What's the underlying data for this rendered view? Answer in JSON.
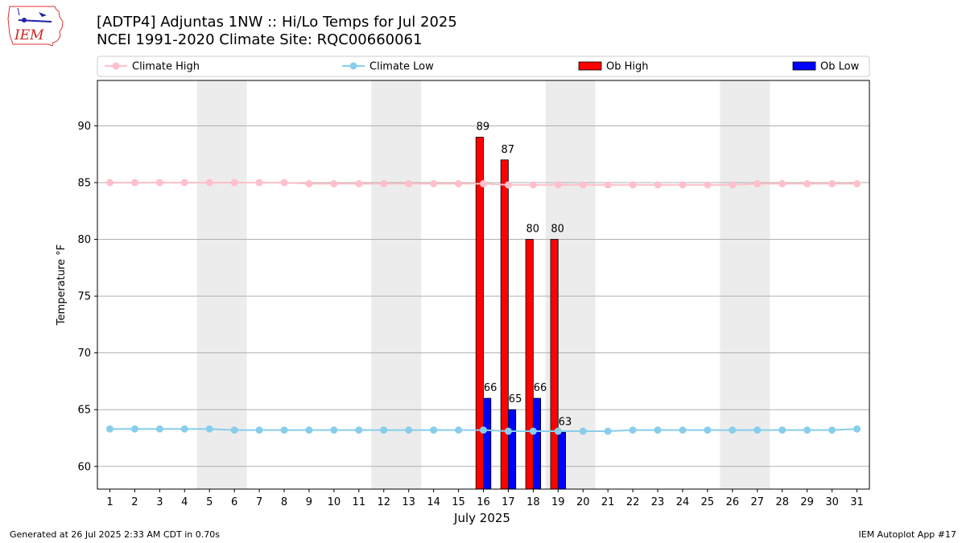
{
  "header": {
    "title_line1": "[ADTP4] Adjuntas 1NW :: Hi/Lo Temps for Jul 2025",
    "title_line2": "NCEI 1991-2020 Climate Site: RQC00660061",
    "logo_text": "IEM"
  },
  "footer": {
    "left": "Generated at 26 Jul 2025 2:33 AM CDT in 0.70s",
    "right": "IEM Autoplot App #17"
  },
  "colors": {
    "climate_high": "#ffc0cb",
    "climate_low": "#87ceeb",
    "ob_high": "#ff0000",
    "ob_low": "#0000ff",
    "weekend_shade": "#ececec",
    "grid": "#b0b0b0"
  },
  "chart_data": {
    "type": "bar",
    "xlabel": "July 2025",
    "ylabel": "Temperature °F",
    "xlim": [
      0.5,
      31.5
    ],
    "ylim": [
      58,
      94
    ],
    "yticks": [
      60,
      65,
      70,
      75,
      80,
      85,
      90
    ],
    "grid": "y",
    "legend_position": "top",
    "shaded_weekends": [
      [
        5,
        6
      ],
      [
        12,
        13
      ],
      [
        19,
        20
      ],
      [
        26,
        27
      ]
    ],
    "days": [
      1,
      2,
      3,
      4,
      5,
      6,
      7,
      8,
      9,
      10,
      11,
      12,
      13,
      14,
      15,
      16,
      17,
      18,
      19,
      20,
      21,
      22,
      23,
      24,
      25,
      26,
      27,
      28,
      29,
      30,
      31
    ],
    "series": [
      {
        "name": "Climate High",
        "kind": "line",
        "values": [
          85.0,
          85.0,
          85.0,
          85.0,
          85.0,
          85.0,
          85.0,
          85.0,
          84.9,
          84.9,
          84.9,
          84.9,
          84.9,
          84.9,
          84.9,
          84.9,
          84.8,
          84.8,
          84.8,
          84.8,
          84.8,
          84.8,
          84.8,
          84.8,
          84.8,
          84.8,
          84.9,
          84.9,
          84.9,
          84.9,
          84.9
        ]
      },
      {
        "name": "Climate Low",
        "kind": "line",
        "values": [
          63.3,
          63.3,
          63.3,
          63.3,
          63.3,
          63.2,
          63.2,
          63.2,
          63.2,
          63.2,
          63.2,
          63.2,
          63.2,
          63.2,
          63.2,
          63.2,
          63.1,
          63.1,
          63.1,
          63.1,
          63.1,
          63.2,
          63.2,
          63.2,
          63.2,
          63.2,
          63.2,
          63.2,
          63.2,
          63.2,
          63.3
        ]
      },
      {
        "name": "Ob High",
        "kind": "bar",
        "days": [
          16,
          17,
          18,
          19
        ],
        "values": [
          89,
          87,
          80,
          80
        ]
      },
      {
        "name": "Ob Low",
        "kind": "bar",
        "days": [
          16,
          17,
          18,
          19
        ],
        "values": [
          66,
          65,
          66,
          63
        ]
      }
    ]
  }
}
